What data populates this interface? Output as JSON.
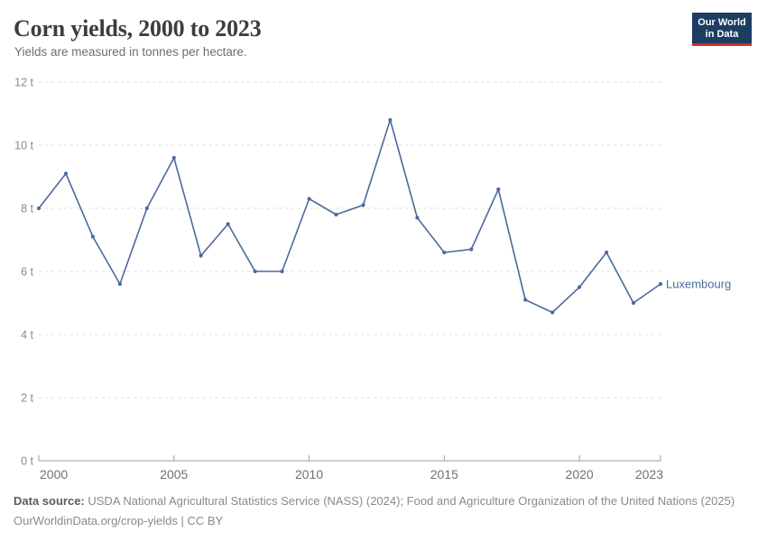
{
  "header": {
    "title": "Corn yields, 2000 to 2023",
    "subtitle": "Yields are measured in tonnes per hectare.",
    "logo": {
      "line1": "Our World",
      "line2": "in Data"
    }
  },
  "colors": {
    "series_blue": "#4c6a9c",
    "logo_background": "#1d3d63",
    "logo_accent_red": "#cf302b",
    "gridline_gray": "#dcdcdc",
    "axis_gray": "#9a9a9a",
    "y_tick_text": "#898989",
    "x_tick_text": "#707070"
  },
  "chart_data": {
    "type": "line",
    "title": "Corn yields, 2000 to 2023",
    "ylabel": "tonnes per hectare",
    "x": [
      2000,
      2001,
      2002,
      2003,
      2004,
      2005,
      2006,
      2007,
      2008,
      2009,
      2010,
      2011,
      2012,
      2013,
      2014,
      2015,
      2016,
      2017,
      2018,
      2019,
      2020,
      2021,
      2022,
      2023
    ],
    "series": [
      {
        "name": "Luxembourg",
        "color": "#4c6a9c",
        "values": [
          8.0,
          9.1,
          7.1,
          5.6,
          8.0,
          9.6,
          6.5,
          7.5,
          6.0,
          6.0,
          8.3,
          7.8,
          8.1,
          10.8,
          7.7,
          6.6,
          6.7,
          8.6,
          5.1,
          4.7,
          5.5,
          6.6,
          5.0,
          5.6
        ]
      }
    ],
    "ylim": [
      0,
      12
    ],
    "y_ticks": [
      {
        "value": 0,
        "label": "0 t"
      },
      {
        "value": 2,
        "label": "2 t"
      },
      {
        "value": 4,
        "label": "4 t"
      },
      {
        "value": 6,
        "label": "6 t"
      },
      {
        "value": 8,
        "label": "8 t"
      },
      {
        "value": 10,
        "label": "10 t"
      },
      {
        "value": 12,
        "label": "12 t"
      }
    ],
    "x_ticks": [
      {
        "value": 2000,
        "label": "2000"
      },
      {
        "value": 2005,
        "label": "2005"
      },
      {
        "value": 2010,
        "label": "2010"
      },
      {
        "value": 2015,
        "label": "2015"
      },
      {
        "value": 2020,
        "label": "2020"
      },
      {
        "value": 2023,
        "label": "2023"
      }
    ],
    "grid": "horizontal-dashed",
    "legend": "series-end-label"
  },
  "footer": {
    "source_label": "Data source:",
    "source_text": "USDA National Agricultural Statistics Service (NASS) (2024); Food and Agriculture Organization of the United Nations (2025)",
    "license_line": "OurWorldinData.org/crop-yields | CC BY"
  }
}
